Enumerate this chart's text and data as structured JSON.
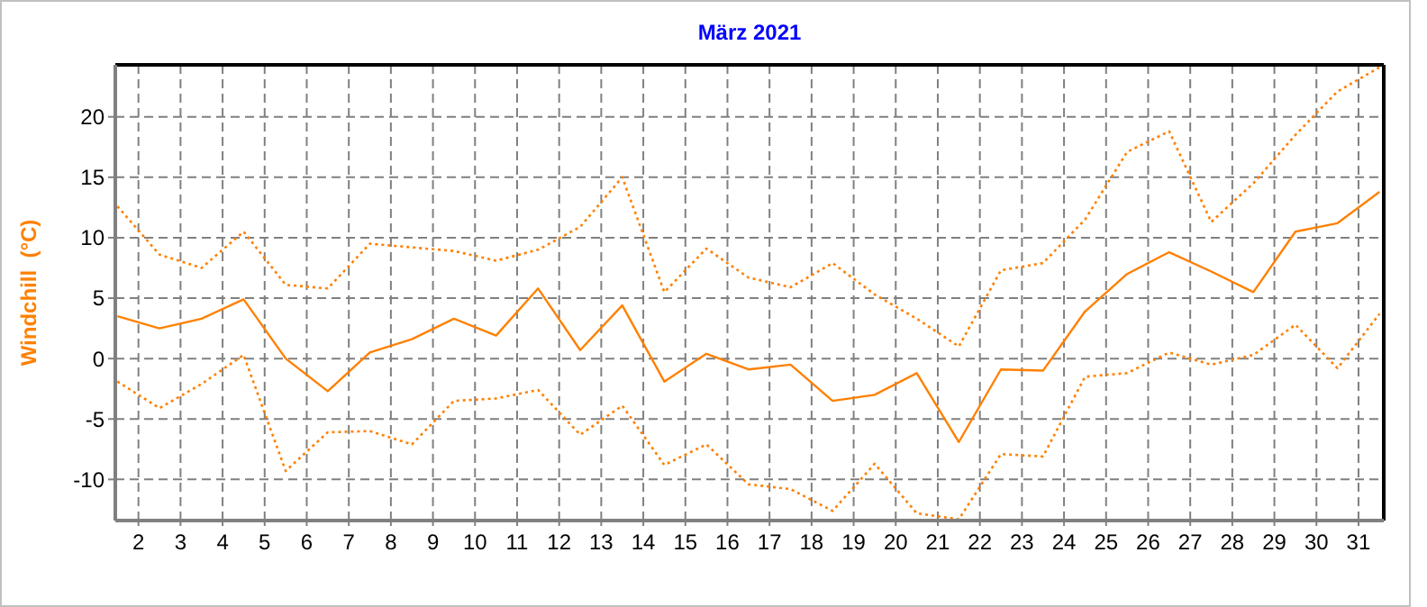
{
  "chart_data": {
    "type": "line",
    "title": "März 2021",
    "ylabel": "Windchill  (°C)",
    "xlim": [
      1.45,
      31.6
    ],
    "xticks": [
      2,
      3,
      4,
      5,
      6,
      7,
      8,
      9,
      10,
      11,
      12,
      13,
      14,
      15,
      16,
      17,
      18,
      19,
      20,
      21,
      22,
      23,
      24,
      25,
      26,
      27,
      28,
      29,
      30,
      31
    ],
    "ylim": [
      -13.4,
      24.3
    ],
    "yticks": [
      -10,
      -5,
      0,
      5,
      10,
      15,
      20
    ],
    "grid": true,
    "marker": "none",
    "x": [
      1.5,
      2.5,
      3.5,
      4.5,
      5.5,
      6.5,
      7.5,
      8.5,
      9.5,
      10.5,
      11.5,
      12.5,
      13.5,
      14.5,
      15.5,
      16.5,
      17.5,
      18.5,
      19.5,
      20.5,
      21.5,
      22.5,
      23.5,
      24.5,
      25.5,
      26.5,
      27.5,
      28.5,
      29.5,
      30.5,
      31.5
    ],
    "series": [
      {
        "color": "#ff8000",
        "line_style": "dotted",
        "values": [
          12.6,
          8.6,
          7.5,
          10.5,
          6.1,
          5.8,
          9.5,
          9.2,
          8.9,
          8.1,
          9.0,
          10.9,
          15.0,
          5.5,
          9.1,
          6.7,
          5.9,
          7.9,
          5.3,
          3.3,
          1.0,
          7.3,
          7.9,
          11.5,
          17.1,
          18.8,
          11.3,
          14.5,
          18.5,
          22.1,
          24.1
        ]
      },
      {
        "color": "#ff8000",
        "line_style": "solid",
        "values": [
          3.5,
          2.5,
          3.3,
          4.9,
          0,
          -2.7,
          0.5,
          1.6,
          3.3,
          1.9,
          5.8,
          0.7,
          4.4,
          -1.9,
          0.4,
          -0.9,
          -0.5,
          -3.5,
          -3.0,
          -1.2,
          -6.9,
          -0.9,
          -1.0,
          3.9,
          7.0,
          8.8,
          7.2,
          5.5,
          10.5,
          11.2,
          13.8
        ]
      },
      {
        "color": "#ff8000",
        "line_style": "dotted",
        "values": [
          -1.9,
          -4.1,
          -2.1,
          0.3,
          -9.3,
          -6.1,
          -6.0,
          -7.1,
          -3.5,
          -3.3,
          -2.6,
          -6.3,
          -3.9,
          -8.8,
          -7.1,
          -10.4,
          -10.8,
          -12.6,
          -8.7,
          -12.8,
          -13.3,
          -7.9,
          -8.1,
          -1.5,
          -1.2,
          0.5,
          -0.5,
          0.3,
          2.8,
          -0.8,
          3.7
        ]
      }
    ]
  }
}
